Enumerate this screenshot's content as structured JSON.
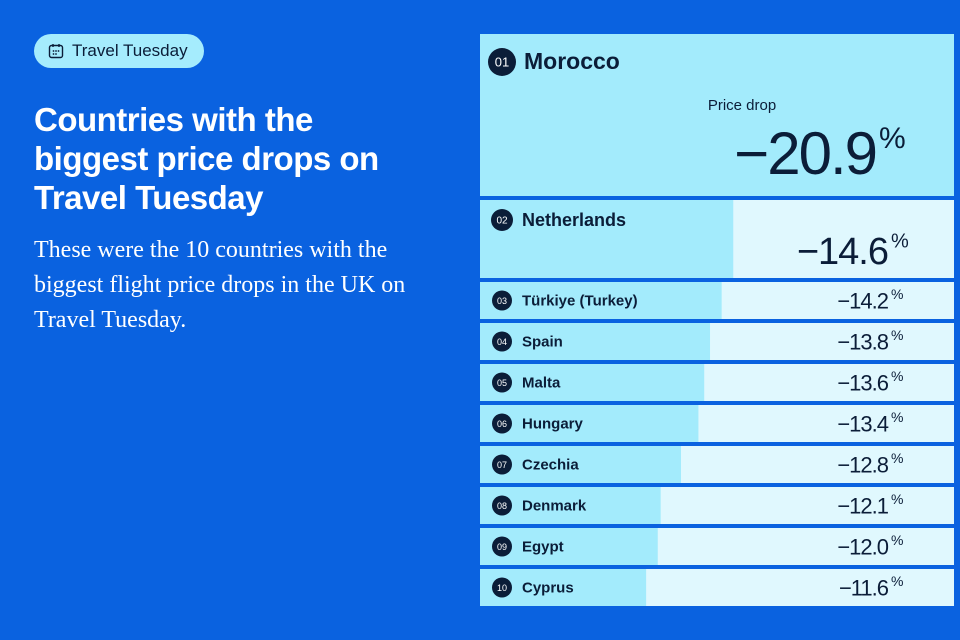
{
  "badge": "Travel Tuesday",
  "chart_data": {
    "type": "ranked-bar",
    "title": "Countries with the biggest price drops on Travel Tuesday",
    "subtitle": "These were the 10 countries with the biggest flight price drops in the UK on Travel Tuesday.",
    "value_caption": "Price drop",
    "unit": "%",
    "ranks": [
      "01",
      "02",
      "03",
      "04",
      "05",
      "06",
      "07",
      "08",
      "09",
      "10"
    ],
    "categories": [
      "Morocco",
      "Netherlands",
      "Türkiye (Turkey)",
      "Spain",
      "Malta",
      "Hungary",
      "Czechia",
      "Denmark",
      "Egypt",
      "Cyprus"
    ],
    "values": [
      -20.9,
      -14.6,
      -14.2,
      -13.8,
      -13.6,
      -13.4,
      -12.8,
      -12.1,
      -12.0,
      -11.6
    ],
    "value_labels": [
      "−20.9",
      "−14.6",
      "−14.2",
      "−13.8",
      "−13.6",
      "−13.4",
      "−12.8",
      "−12.1",
      "−12.0",
      "−11.6"
    ],
    "xlim": [
      -5.88,
      -22.2
    ],
    "color": "#a3ebfc"
  }
}
